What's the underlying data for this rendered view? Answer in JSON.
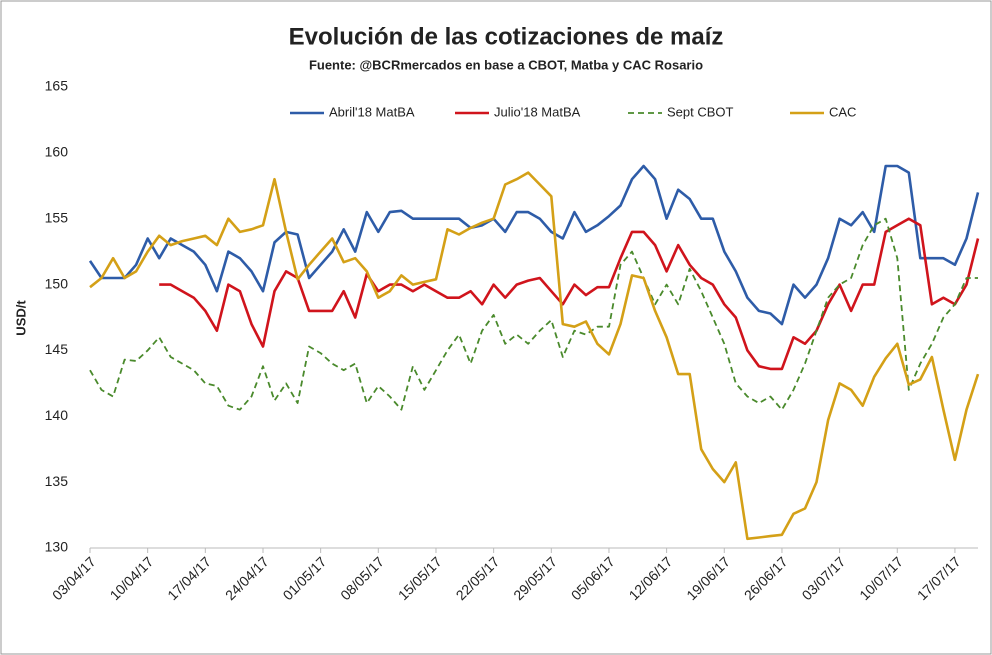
{
  "chart_data": {
    "type": "line",
    "title": "Evolución de las cotizaciones de maíz",
    "subtitle": "Fuente: @BCRmercados  en base a CBOT, Matba y CAC Rosario",
    "y_label": "USD/t",
    "categories": [
      "03/04/17",
      null,
      null,
      null,
      null,
      "10/04/17",
      null,
      null,
      null,
      null,
      "17/04/17",
      null,
      null,
      null,
      null,
      "24/04/17",
      null,
      null,
      null,
      null,
      "01/05/17",
      null,
      null,
      null,
      null,
      "08/05/17",
      null,
      null,
      null,
      null,
      "15/05/17",
      null,
      null,
      null,
      null,
      "22/05/17",
      null,
      null,
      null,
      null,
      "29/05/17",
      null,
      null,
      null,
      null,
      "05/06/17",
      null,
      null,
      null,
      null,
      "12/06/17",
      null,
      null,
      null,
      null,
      "19/06/17",
      null,
      null,
      null,
      null,
      "26/06/17",
      null,
      null,
      null,
      null,
      "03/07/17",
      null,
      null,
      null,
      null,
      "10/07/17",
      null,
      null,
      null,
      null,
      "17/07/17",
      null,
      null
    ],
    "series": [
      {
        "name": "Abril'18 MatBA",
        "color": "#2e5ca8",
        "dashed": false,
        "values": [
          151.8,
          150.5,
          150.5,
          150.5,
          151.5,
          153.5,
          152,
          153.5,
          153,
          152.5,
          151.5,
          149.5,
          152.5,
          152,
          151,
          149.5,
          153.2,
          154,
          153.8,
          150.5,
          151.5,
          152.5,
          154.2,
          152.5,
          155.5,
          154,
          155.5,
          155.6,
          155,
          155,
          155,
          155,
          155,
          154.3,
          154.5,
          155,
          154,
          155.5,
          155.5,
          155,
          154,
          153.5,
          155.5,
          154,
          154.5,
          155.2,
          156,
          158,
          159,
          158,
          155,
          157.2,
          156.5,
          155,
          155,
          152.5,
          151,
          149,
          148,
          147.8,
          147,
          150,
          149,
          150,
          152,
          155,
          154.5,
          155.5,
          154,
          159,
          159,
          158.5,
          152,
          152,
          152,
          151.5,
          153.5,
          157
        ]
      },
      {
        "name": "Julio'18 MatBA",
        "color": "#d0141c",
        "dashed": false,
        "values": [
          null,
          null,
          null,
          null,
          null,
          null,
          150,
          150,
          149.5,
          149,
          148,
          146.5,
          150,
          149.5,
          147,
          145.3,
          149.5,
          151,
          150.5,
          148,
          148,
          148,
          149.5,
          147.5,
          150.8,
          149.5,
          150,
          150,
          149.5,
          150,
          149.5,
          149,
          149,
          149.5,
          148.5,
          150,
          149,
          150,
          150.3,
          150.5,
          149.5,
          148.5,
          150,
          149.2,
          149.8,
          149.8,
          152,
          154,
          154,
          153,
          151,
          153,
          151.5,
          150.5,
          150,
          148.5,
          147.5,
          145,
          143.8,
          143.6,
          143.6,
          146,
          145.5,
          146.5,
          148.5,
          150,
          148,
          150,
          150,
          154,
          154.5,
          155,
          154.5,
          148.5,
          149,
          148.5,
          150,
          153.5
        ]
      },
      {
        "name": "Sept CBOT",
        "color": "#4a8a2c",
        "dashed": true,
        "values": [
          143.5,
          142,
          141.5,
          144.3,
          144.2,
          145,
          146,
          144.5,
          144,
          143.5,
          142.5,
          142.3,
          140.8,
          140.5,
          141.5,
          143.8,
          141.2,
          142.5,
          141,
          145.3,
          144.8,
          144,
          143.5,
          144,
          141,
          142.3,
          141.5,
          140.5,
          143.8,
          142,
          143.5,
          145,
          146.2,
          144,
          146.5,
          147.7,
          145.5,
          146.2,
          145.5,
          146.5,
          147.3,
          144.5,
          146.5,
          146.2,
          146.8,
          146.8,
          151.5,
          152.5,
          150.5,
          148.5,
          150,
          148.5,
          151.2,
          149.5,
          147.5,
          145.5,
          142.5,
          141.5,
          141,
          141.5,
          140.5,
          142,
          144,
          146.5,
          149,
          150,
          150.5,
          153,
          154.5,
          155,
          152,
          142,
          144,
          145.5,
          147.5,
          148.5,
          150.5,
          150.5
        ]
      },
      {
        "name": "CAC",
        "color": "#d4a017",
        "dashed": false,
        "values": [
          149.8,
          150.5,
          152,
          150.5,
          151,
          152.5,
          153.7,
          153,
          153.3,
          153.5,
          153.7,
          153,
          155,
          154,
          154.2,
          154.5,
          158,
          154,
          150.4,
          151.5,
          152.5,
          153.5,
          151.7,
          152,
          151,
          149,
          149.5,
          150.7,
          150,
          150.2,
          150.4,
          154.2,
          153.8,
          154.3,
          154.7,
          155,
          157.6,
          158,
          158.5,
          157.6,
          156.7,
          147,
          146.8,
          147.2,
          145.5,
          144.7,
          147,
          150.7,
          150.5,
          148,
          146,
          143.2,
          143.2,
          137.5,
          136,
          135,
          136.5,
          130.7,
          130.8,
          130.9,
          131,
          132.6,
          133,
          135,
          139.7,
          142.5,
          142,
          140.8,
          143,
          144.4,
          145.5,
          142.4,
          142.8,
          144.5,
          140.5,
          136.7,
          140.5,
          143.2
        ]
      }
    ],
    "ylim": [
      130,
      165
    ],
    "yticks": [
      130,
      135,
      140,
      145,
      150,
      155,
      160,
      165
    ],
    "grid": false,
    "legend": "top"
  }
}
